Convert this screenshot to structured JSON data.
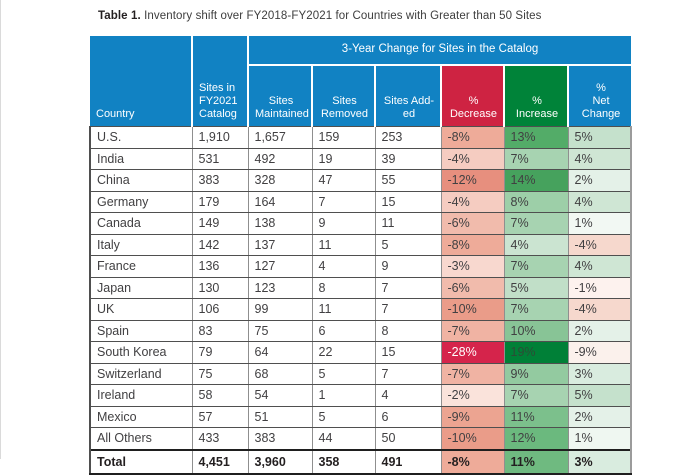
{
  "title": {
    "label": "Table 1.",
    "text": " Inventory shift over FY2018-FY2021 for Countries with Greater than 50 Sites"
  },
  "colors": {
    "header_blue": "#1182c3",
    "header_red": "#ce2342",
    "header_green": "#008339",
    "text_dark": "#414042",
    "decrease_extreme_bg": "#d5244b",
    "increase_extreme_bg": "#008037",
    "border_dark": "#4f4f4f",
    "border_light": "#8f8f8f"
  },
  "table": {
    "span_header": "3-Year Change for Sites in the Catalog",
    "header": {
      "country": "Country",
      "sites_in_catalog": "Sites in\nFY2021\nCatalog",
      "maintained": "Sites\nMaintained",
      "removed": "Sites\nRemoved",
      "added": "Sites Add-\ned",
      "decrease": "%\nDecrease",
      "increase": "%\nIncrease",
      "net": "%\nNet\nChange"
    },
    "rows": [
      {
        "country": "U.S.",
        "sites": "1,910",
        "maintained": "1,657",
        "removed": "159",
        "added": "253",
        "decrease": "-8%",
        "increase": "13%",
        "net": "5%",
        "dec_bg": "#eeab99",
        "inc_bg": "#53ac68",
        "net_bg": "#c5e1cc",
        "dec_fg": "#414042",
        "inc_fg": "#414042"
      },
      {
        "country": "India",
        "sites": "531",
        "maintained": "492",
        "removed": "19",
        "added": "39",
        "decrease": "-4%",
        "increase": "7%",
        "net": "4%",
        "dec_bg": "#f5ccc1",
        "inc_bg": "#a7d3b1",
        "net_bg": "#cfe6d4",
        "dec_fg": "#414042",
        "inc_fg": "#414042"
      },
      {
        "country": "China",
        "sites": "383",
        "maintained": "328",
        "removed": "47",
        "added": "55",
        "decrease": "-12%",
        "increase": "14%",
        "net": "2%",
        "dec_bg": "#e78f7e",
        "inc_bg": "#46a25d",
        "net_bg": "#e4f1e8",
        "dec_fg": "#414042",
        "inc_fg": "#414042"
      },
      {
        "country": "Germany",
        "sites": "179",
        "maintained": "164",
        "removed": "7",
        "added": "15",
        "decrease": "-4%",
        "increase": "8%",
        "net": "4%",
        "dec_bg": "#f5ccc1",
        "inc_bg": "#9dcfa8",
        "net_bg": "#cfe6d4",
        "dec_fg": "#414042",
        "inc_fg": "#414042"
      },
      {
        "country": "Canada",
        "sites": "149",
        "maintained": "138",
        "removed": "9",
        "added": "11",
        "decrease": "-6%",
        "increase": "7%",
        "net": "1%",
        "dec_bg": "#f1bbac",
        "inc_bg": "#a7d3b1",
        "net_bg": "#f2f8f3",
        "dec_fg": "#414042",
        "inc_fg": "#414042"
      },
      {
        "country": "Italy",
        "sites": "142",
        "maintained": "137",
        "removed": "11",
        "added": "5",
        "decrease": "-8%",
        "increase": "4%",
        "net": "-4%",
        "dec_bg": "#eeab99",
        "inc_bg": "#cbe4d1",
        "net_bg": "#f6d8cd",
        "dec_fg": "#414042",
        "inc_fg": "#414042"
      },
      {
        "country": "France",
        "sites": "136",
        "maintained": "127",
        "removed": "4",
        "added": "9",
        "decrease": "-3%",
        "increase": "7%",
        "net": "4%",
        "dec_bg": "#f8d8cf",
        "inc_bg": "#a7d3b1",
        "net_bg": "#cfe6d4",
        "dec_fg": "#414042",
        "inc_fg": "#414042"
      },
      {
        "country": "Japan",
        "sites": "130",
        "maintained": "123",
        "removed": "8",
        "added": "7",
        "decrease": "-6%",
        "increase": "5%",
        "net": "-1%",
        "dec_bg": "#f1bbac",
        "inc_bg": "#c1dfc8",
        "net_bg": "#fdf2ee",
        "dec_fg": "#414042",
        "inc_fg": "#414042"
      },
      {
        "country": "UK",
        "sites": "106",
        "maintained": "99",
        "removed": "11",
        "added": "7",
        "decrease": "-10%",
        "increase": "7%",
        "net": "-4%",
        "dec_bg": "#ea9c89",
        "inc_bg": "#a7d3b1",
        "net_bg": "#f6d8cd",
        "dec_fg": "#414042",
        "inc_fg": "#414042"
      },
      {
        "country": "Spain",
        "sites": "83",
        "maintained": "75",
        "removed": "6",
        "added": "8",
        "decrease": "-7%",
        "increase": "10%",
        "net": "2%",
        "dec_bg": "#f0b3a3",
        "inc_bg": "#88c496",
        "net_bg": "#e4f1e8",
        "dec_fg": "#414042",
        "inc_fg": "#414042"
      },
      {
        "country": "South Korea",
        "sites": "79",
        "maintained": "64",
        "removed": "22",
        "added": "15",
        "decrease": "-28%",
        "increase": "19%",
        "net": "-9%",
        "dec_bg": "#d5244b",
        "inc_bg": "#008037",
        "net_bg": "#fbf1ec",
        "dec_fg": "#ffffff",
        "inc_fg": "#2c4c36"
      },
      {
        "country": "Switzerland",
        "sites": "75",
        "maintained": "68",
        "removed": "5",
        "added": "7",
        "decrease": "-7%",
        "increase": "9%",
        "net": "3%",
        "dec_bg": "#f0b3a3",
        "inc_bg": "#93caa0",
        "net_bg": "#d9ecdf",
        "dec_fg": "#414042",
        "inc_fg": "#414042"
      },
      {
        "country": "Ireland",
        "sites": "58",
        "maintained": "54",
        "removed": "1",
        "added": "4",
        "decrease": "-2%",
        "increase": "7%",
        "net": "5%",
        "dec_bg": "#fae3db",
        "inc_bg": "#a7d3b1",
        "net_bg": "#c5e1cc",
        "dec_fg": "#414042",
        "inc_fg": "#414042"
      },
      {
        "country": "Mexico",
        "sites": "57",
        "maintained": "51",
        "removed": "5",
        "added": "6",
        "decrease": "-9%",
        "increase": "11%",
        "net": "2%",
        "dec_bg": "#eca491",
        "inc_bg": "#7cc08c",
        "net_bg": "#e4f1e8",
        "dec_fg": "#414042",
        "inc_fg": "#414042"
      },
      {
        "country": "All Others",
        "sites": "433",
        "maintained": "383",
        "removed": "44",
        "added": "50",
        "decrease": "-10%",
        "increase": "12%",
        "net": "1%",
        "dec_bg": "#ea9c89",
        "inc_bg": "#6bb97e",
        "net_bg": "#eff7f1",
        "dec_fg": "#414042",
        "inc_fg": "#414042"
      },
      {
        "country": "Total",
        "sites": "4,451",
        "maintained": "3,960",
        "removed": "358",
        "added": "491",
        "decrease": "-8%",
        "increase": "11%",
        "net": "3%",
        "dec_bg": "#eeab99",
        "inc_bg": "#6fba80",
        "net_bg": "#d9ecdf",
        "dec_fg": "#231f20",
        "inc_fg": "#231f20",
        "is_total": true
      }
    ]
  }
}
